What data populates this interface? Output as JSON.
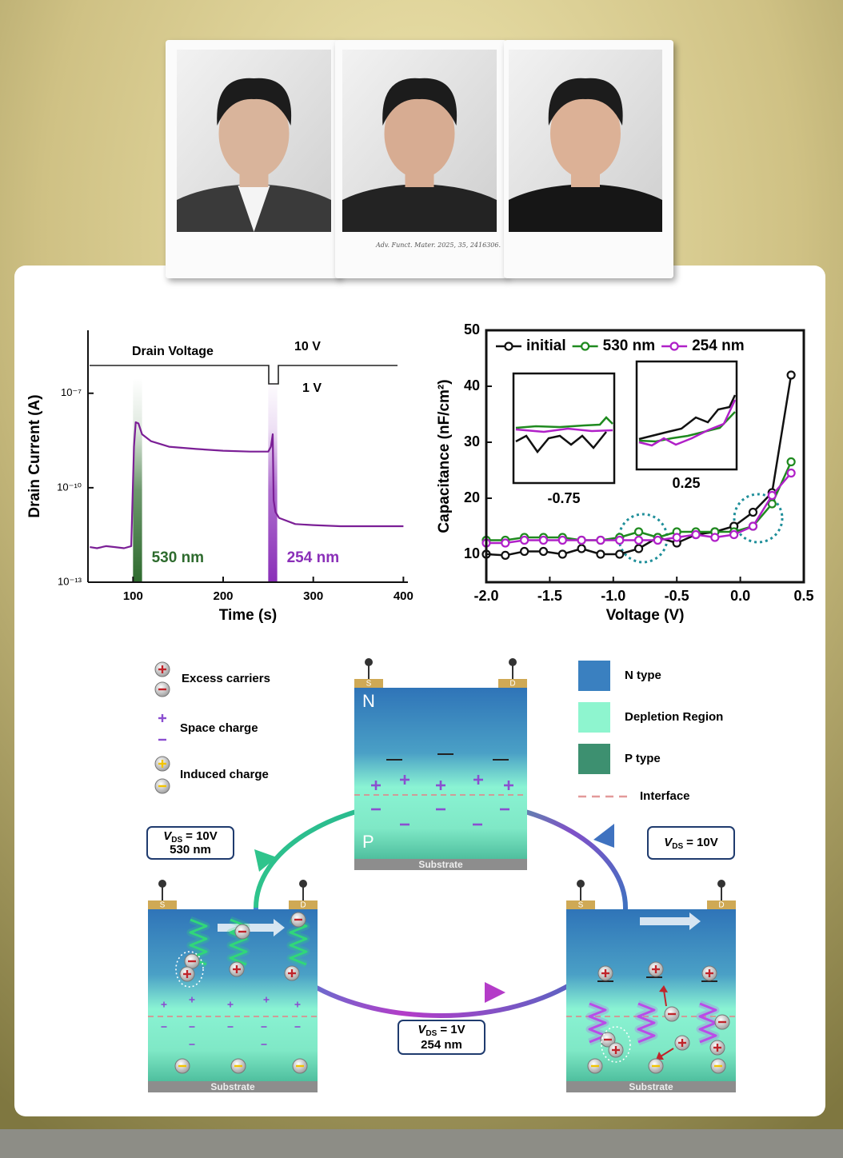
{
  "photos": {
    "caption": "Adv. Funct. Mater. 2025, 35, 2416306."
  },
  "chart_data": [
    {
      "type": "line",
      "x_label": "Time (s)",
      "y_label": "Drain Current (A)",
      "log_y": true,
      "xlim": [
        50,
        405
      ],
      "ylim": [
        1e-13,
        1e-05
      ],
      "xticks": [
        100,
        200,
        300,
        400
      ],
      "yticks": [
        {
          "value": 1e-13,
          "label": "10⁻¹³"
        },
        {
          "value": 1e-10,
          "label": "10⁻¹⁰"
        },
        {
          "value": 1e-07,
          "label": "10⁻⁷"
        }
      ],
      "color": "#7b1f96",
      "x": [
        52,
        60,
        70,
        80,
        90,
        98,
        101,
        103,
        106,
        110,
        120,
        140,
        170,
        200,
        230,
        250,
        253,
        255,
        256,
        258,
        262,
        280,
        300,
        330,
        360,
        400
      ],
      "values": [
        1.3e-12,
        1.2e-12,
        1.4e-12,
        1.3e-12,
        1.2e-12,
        1.4e-12,
        2e-09,
        1.2e-08,
        1.1e-08,
        5e-09,
        3e-09,
        2e-09,
        1.7e-09,
        1.5e-09,
        1.4e-09,
        1.4e-09,
        2e-09,
        5e-09,
        4e-11,
        1.7e-11,
        1.1e-11,
        7e-12,
        6.5e-12,
        6e-12,
        6e-12,
        6e-12
      ],
      "highlights": [
        {
          "x": [
            100,
            110
          ],
          "label": "530 nm",
          "color": "#2e6b2e"
        },
        {
          "x": [
            250,
            260
          ],
          "label": "254 nm",
          "color": "#8a2fb8"
        }
      ],
      "annotations": [
        "Drain Voltage",
        "10 V",
        "1 V"
      ]
    },
    {
      "type": "line",
      "x_label": "Voltage (V)",
      "y_label": "Capacitance (nF/cm²)",
      "marker": "circle",
      "xlim": [
        -2.0,
        0.5
      ],
      "ylim": [
        5,
        50
      ],
      "xticks": [
        {
          "value": -2,
          "label": "-2.0"
        },
        -1.5,
        {
          "value": -1,
          "label": "-1.0"
        },
        -0.5,
        {
          "value": 0,
          "label": "0.0"
        },
        0.5
      ],
      "yticks": [
        10,
        20,
        30,
        40,
        50
      ],
      "x": [
        -2.0,
        -1.85,
        -1.7,
        -1.55,
        -1.4,
        -1.25,
        -1.1,
        -0.95,
        -0.8,
        -0.65,
        -0.5,
        -0.35,
        -0.2,
        -0.05,
        0.1,
        0.25,
        0.4
      ],
      "series": [
        {
          "name": "initial",
          "color": "#111111",
          "values": [
            10,
            9.8,
            10.5,
            10.5,
            10,
            11,
            10,
            10,
            11,
            13,
            12,
            13.5,
            14,
            15,
            17.5,
            21,
            42
          ]
        },
        {
          "name": "530 nm",
          "color": "#1f8a1f",
          "values": [
            12.5,
            12.5,
            13,
            13,
            13,
            12.5,
            12.5,
            13,
            14,
            13,
            14,
            14,
            14,
            14,
            15,
            19,
            26.5
          ]
        },
        {
          "name": "254 nm",
          "color": "#b020c8",
          "values": [
            12,
            12,
            12.5,
            12.5,
            12.5,
            12.5,
            12.5,
            12.5,
            12.5,
            12.5,
            13,
            13.5,
            13,
            13.5,
            15,
            20.5,
            24.5
          ]
        }
      ],
      "insets": [
        {
          "label": "-0.75"
        },
        {
          "label": "0.25"
        }
      ]
    }
  ],
  "diagram": {
    "legend_left": [
      "Excess carriers",
      "Space charge",
      "Induced charge"
    ],
    "legend_right": [
      "N type",
      "Depletion Region",
      "P type",
      "Interface"
    ],
    "devices": [
      {
        "source": "S",
        "drain": "D",
        "substrate": "Substrate",
        "top_layer": "N",
        "bottom_layer": "P"
      },
      {
        "source": "S",
        "drain": "D",
        "substrate": "Substrate"
      },
      {
        "source": "S",
        "drain": "D",
        "substrate": "Substrate"
      }
    ],
    "conditions": [
      {
        "symbol": "V",
        "subscript": "DS",
        "value": "= 10V",
        "wavelength": "530 nm"
      },
      {
        "symbol": "V",
        "subscript": "DS",
        "value": "= 10V"
      },
      {
        "symbol": "V",
        "subscript": "DS",
        "value": "= 1V",
        "wavelength": "254 nm"
      }
    ]
  }
}
